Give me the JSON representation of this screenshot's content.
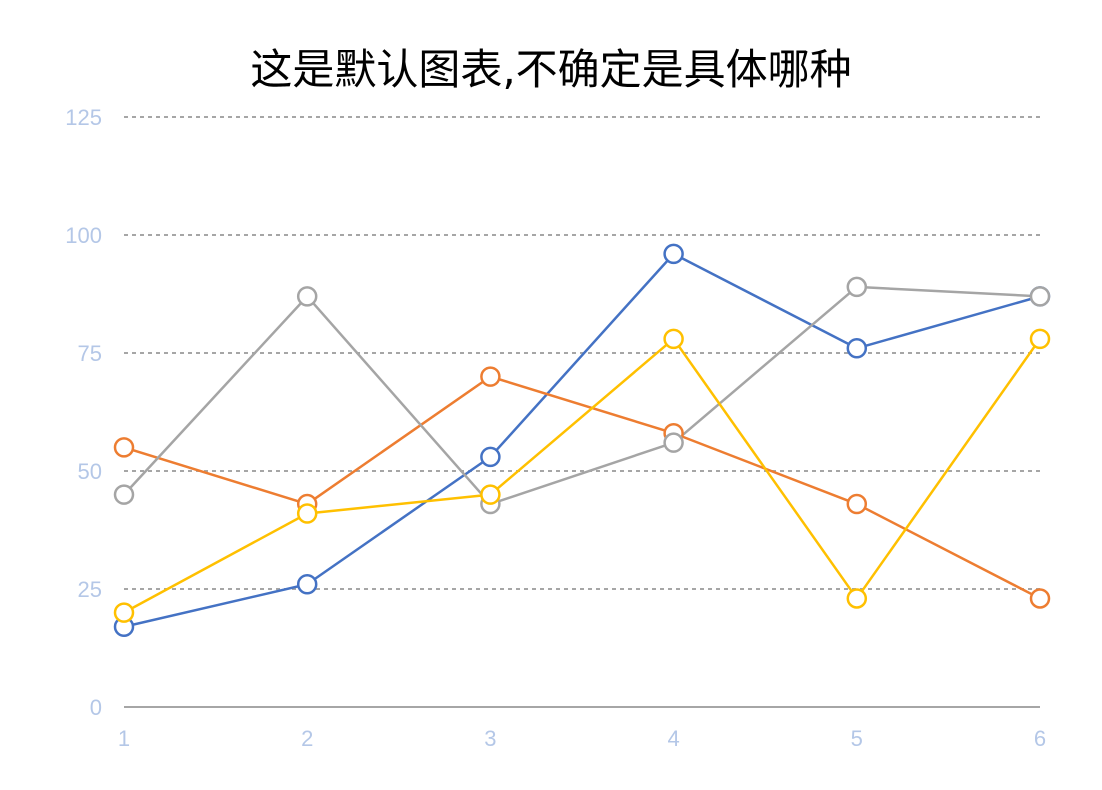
{
  "chart_data": {
    "type": "line",
    "title": "这是默认图表,不确定是具体哪种",
    "xlabel": "",
    "ylabel": "",
    "x": [
      1,
      2,
      3,
      4,
      5,
      6
    ],
    "ylim": [
      0,
      125
    ],
    "yticks": [
      0,
      25,
      50,
      75,
      100,
      125
    ],
    "grid": true,
    "legend": "none",
    "series": [
      {
        "color": "#4472c4",
        "values": [
          17,
          26,
          53,
          96,
          76,
          87
        ]
      },
      {
        "color": "#ed7d31",
        "values": [
          55,
          43,
          70,
          58,
          43,
          23
        ]
      },
      {
        "color": "#a5a5a5",
        "values": [
          45,
          87,
          43,
          56,
          89,
          87
        ]
      },
      {
        "color": "#ffc000",
        "values": [
          20,
          41,
          45,
          78,
          23,
          78
        ]
      }
    ],
    "colors": {
      "tick_label": "#b4c7e7",
      "gridline": "#a6a6a6",
      "axis": "#a6a6a6"
    }
  }
}
